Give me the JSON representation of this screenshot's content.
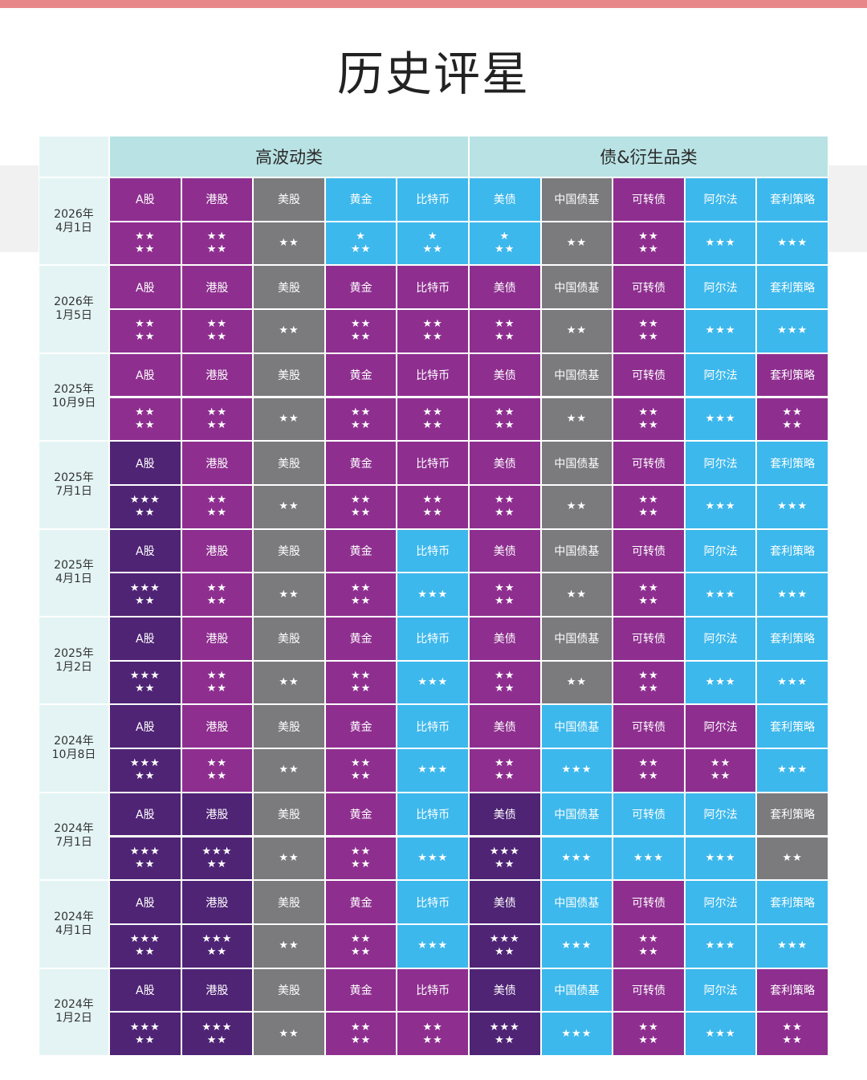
{
  "title": "历史评星",
  "groups": [
    "高波动类",
    "债&衍生品类"
  ],
  "assets": [
    "A股",
    "港股",
    "美股",
    "黄金",
    "比特币",
    "美债",
    "中国债基",
    "可转债",
    "阿尔法",
    "套利策略"
  ],
  "colors": {
    "P": "#8e2f8f",
    "D": "#4f2475",
    "G": "#7b7b7d",
    "B": "#3db8ec",
    "header": "#b9e2e4",
    "date_bg": "#e4f4f4",
    "top_bar": "#e8878a"
  },
  "rating_text": {
    "1+2": [
      "★",
      "★★"
    ],
    "2+2": [
      "★★",
      "★★"
    ],
    "2": [
      "★★"
    ],
    "3": [
      "★★★"
    ],
    "3+2": [
      "★★★",
      "★★"
    ]
  },
  "rows": [
    {
      "date": [
        "2026年",
        "4月1日"
      ],
      "colors": [
        "P",
        "P",
        "G",
        "B",
        "B",
        "B",
        "G",
        "P",
        "B",
        "B"
      ],
      "ratings": [
        "2+2",
        "2+2",
        "2",
        "1+2",
        "1+2",
        "1+2",
        "2",
        "2+2",
        "3",
        "3"
      ]
    },
    {
      "date": [
        "2026年",
        "1月5日"
      ],
      "colors": [
        "P",
        "P",
        "G",
        "P",
        "P",
        "P",
        "G",
        "P",
        "B",
        "B"
      ],
      "ratings": [
        "2+2",
        "2+2",
        "2",
        "2+2",
        "2+2",
        "2+2",
        "2",
        "2+2",
        "3",
        "3"
      ]
    },
    {
      "date": [
        "2025年",
        "10月9日"
      ],
      "colors": [
        "P",
        "P",
        "G",
        "P",
        "P",
        "P",
        "G",
        "P",
        "B",
        "P"
      ],
      "ratings": [
        "2+2",
        "2+2",
        "2",
        "2+2",
        "2+2",
        "2+2",
        "2",
        "2+2",
        "3",
        "2+2"
      ]
    },
    {
      "date": [
        "2025年",
        "7月1日"
      ],
      "colors": [
        "D",
        "P",
        "G",
        "P",
        "P",
        "P",
        "G",
        "P",
        "B",
        "B"
      ],
      "ratings": [
        "3+2",
        "2+2",
        "2",
        "2+2",
        "2+2",
        "2+2",
        "2",
        "2+2",
        "3",
        "3"
      ]
    },
    {
      "date": [
        "2025年",
        "4月1日"
      ],
      "colors": [
        "D",
        "P",
        "G",
        "P",
        "B",
        "P",
        "G",
        "P",
        "B",
        "B"
      ],
      "ratings": [
        "3+2",
        "2+2",
        "2",
        "2+2",
        "3",
        "2+2",
        "2",
        "2+2",
        "3",
        "3"
      ]
    },
    {
      "date": [
        "2025年",
        "1月2日"
      ],
      "colors": [
        "D",
        "P",
        "G",
        "P",
        "B",
        "P",
        "G",
        "P",
        "B",
        "B"
      ],
      "ratings": [
        "3+2",
        "2+2",
        "2",
        "2+2",
        "3",
        "2+2",
        "2",
        "2+2",
        "3",
        "3"
      ]
    },
    {
      "date": [
        "2024年",
        "10月8日"
      ],
      "colors": [
        "D",
        "P",
        "G",
        "P",
        "B",
        "P",
        "B",
        "P",
        "P",
        "B"
      ],
      "ratings": [
        "3+2",
        "2+2",
        "2",
        "2+2",
        "3",
        "2+2",
        "3",
        "2+2",
        "2+2",
        "3"
      ]
    },
    {
      "date": [
        "2024年",
        "7月1日"
      ],
      "colors": [
        "D",
        "D",
        "G",
        "P",
        "B",
        "D",
        "B",
        "B",
        "B",
        "G"
      ],
      "ratings": [
        "3+2",
        "3+2",
        "2",
        "2+2",
        "3",
        "3+2",
        "3",
        "3",
        "3",
        "2"
      ]
    },
    {
      "date": [
        "2024年",
        "4月1日"
      ],
      "colors": [
        "D",
        "D",
        "G",
        "P",
        "B",
        "D",
        "B",
        "P",
        "B",
        "B"
      ],
      "ratings": [
        "3+2",
        "3+2",
        "2",
        "2+2",
        "3",
        "3+2",
        "3",
        "2+2",
        "3",
        "3"
      ]
    },
    {
      "date": [
        "2024年",
        "1月2日"
      ],
      "colors": [
        "D",
        "D",
        "G",
        "P",
        "P",
        "D",
        "B",
        "P",
        "B",
        "P"
      ],
      "ratings": [
        "3+2",
        "3+2",
        "2",
        "2+2",
        "2+2",
        "3+2",
        "3",
        "2+2",
        "3",
        "2+2"
      ]
    }
  ]
}
